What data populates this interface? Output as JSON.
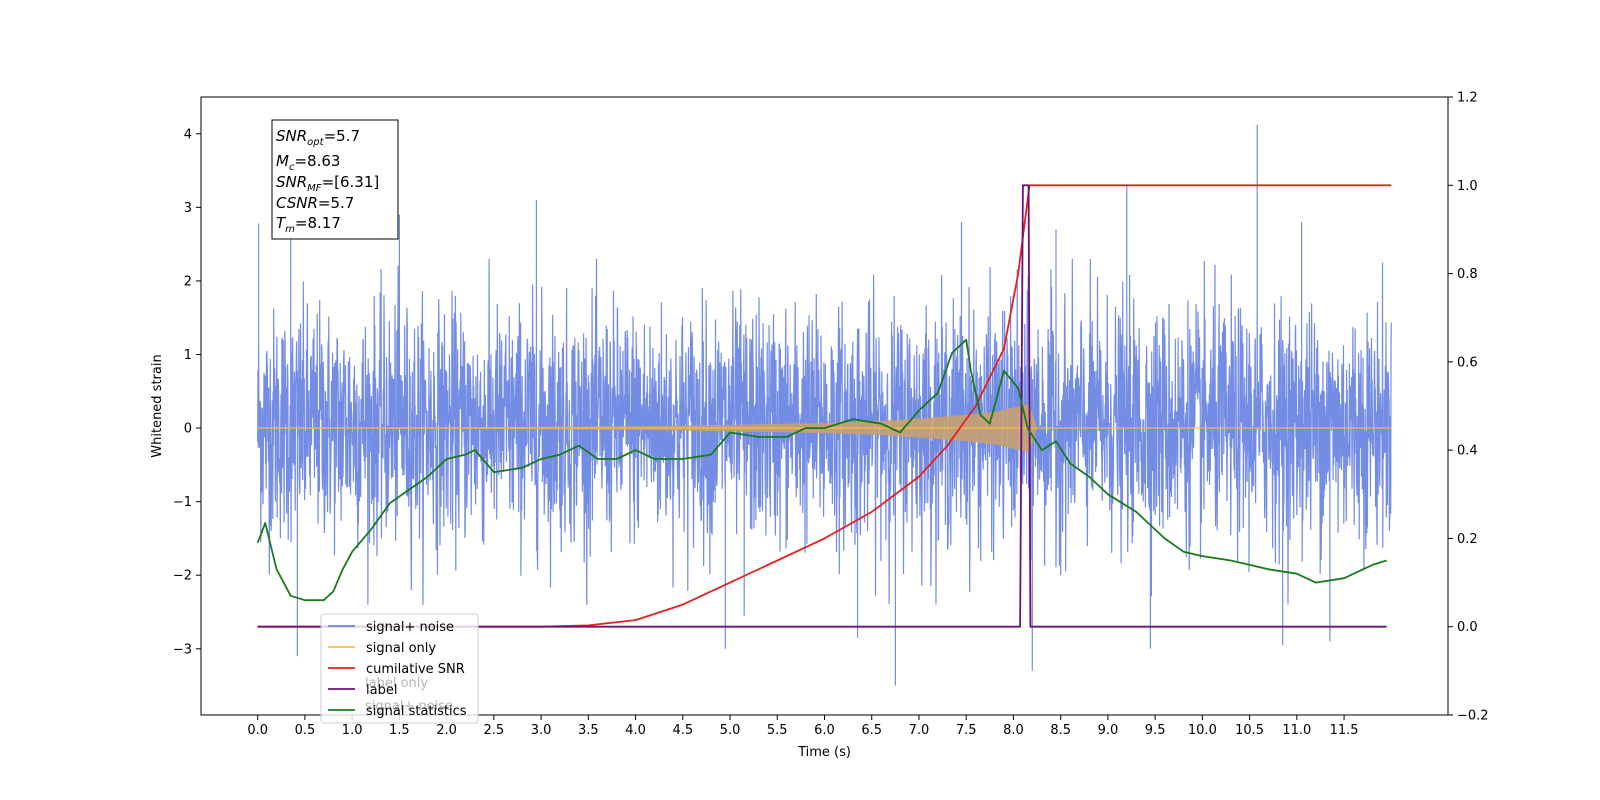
{
  "chart_data": {
    "type": "line",
    "xlabel": "Time (s)",
    "ylabel": "Whitened strain",
    "xlim": [
      -0.6,
      12.6
    ],
    "ylim": [
      -3.9,
      4.5
    ],
    "y2lim": [
      -0.2,
      1.2
    ],
    "x_ticks": [
      0.0,
      0.5,
      1.0,
      1.5,
      2.0,
      2.5,
      3.0,
      3.5,
      4.0,
      4.5,
      5.0,
      5.5,
      6.0,
      6.5,
      7.0,
      7.5,
      8.0,
      8.5,
      9.0,
      9.5,
      10.0,
      10.5,
      11.0,
      11.5
    ],
    "x_tick_labels": [
      "0.0",
      "0.5",
      "1.0",
      "1.5",
      "2.0",
      "2.5",
      "3.0",
      "3.5",
      "4.0",
      "4.5",
      "5.0",
      "5.5",
      "6.0",
      "6.5",
      "7.0",
      "7.5",
      "8.0",
      "8.5",
      "9.0",
      "9.5",
      "10.0",
      "10.5",
      "11.0",
      "11.5"
    ],
    "y_ticks": [
      -3,
      -2,
      -1,
      0,
      1,
      2,
      3,
      4
    ],
    "y_tick_labels": [
      "−3",
      "−2",
      "−1",
      "0",
      "1",
      "2",
      "3",
      "4"
    ],
    "y2_ticks": [
      -0.2,
      0.0,
      0.2,
      0.4,
      0.6,
      0.8,
      1.0,
      1.2
    ],
    "y2_tick_labels": [
      "−0.2",
      "0.0",
      "0.2",
      "0.4",
      "0.6",
      "0.8",
      "1.0",
      "1.2"
    ],
    "legend_position": "lower-left",
    "series": [
      {
        "name": "signal+ noise",
        "axis": "left",
        "color": "#6b86e3",
        "noise_envelope": {
          "x_range": [
            0.0,
            12.0
          ],
          "typical_min": -1.8,
          "typical_max": 1.9
        },
        "spikes": [
          [
            0.01,
            2.78
          ],
          [
            0.35,
            2.65
          ],
          [
            1.5,
            2.9
          ],
          [
            2.95,
            3.1
          ],
          [
            7.45,
            2.8
          ],
          [
            8.45,
            2.7
          ],
          [
            9.2,
            3.3
          ],
          [
            10.58,
            4.12
          ],
          [
            11.05,
            2.8
          ],
          [
            0.42,
            -3.1
          ],
          [
            4.95,
            -3.0
          ],
          [
            5.15,
            -2.55
          ],
          [
            6.35,
            -2.85
          ],
          [
            6.75,
            -3.5
          ],
          [
            8.2,
            -3.3
          ],
          [
            9.45,
            -3.0
          ],
          [
            10.85,
            -2.95
          ],
          [
            11.35,
            -2.9
          ]
        ]
      },
      {
        "name": "signal only",
        "axis": "left",
        "color": "#ffc040",
        "fill_color": "#c8a070",
        "amplitude": {
          "x": [
            0.0,
            2.0,
            4.0,
            5.0,
            6.0,
            6.5,
            7.0,
            7.5,
            7.8,
            8.0,
            8.17,
            8.25,
            12.0
          ],
          "y": [
            0.005,
            0.01,
            0.025,
            0.045,
            0.07,
            0.09,
            0.13,
            0.18,
            0.22,
            0.28,
            0.33,
            0.0,
            0.0
          ]
        }
      },
      {
        "name": "cumilative SNR",
        "axis": "right",
        "color": "#e8201c",
        "x": [
          0.0,
          3.0,
          3.5,
          4.0,
          4.5,
          5.0,
          5.5,
          6.0,
          6.5,
          7.0,
          7.3,
          7.6,
          7.9,
          8.05,
          8.17,
          8.2,
          12.0
        ],
        "y": [
          0.0,
          0.0,
          0.003,
          0.015,
          0.05,
          0.1,
          0.15,
          0.2,
          0.26,
          0.34,
          0.41,
          0.5,
          0.63,
          0.8,
          1.0,
          1.0,
          1.0
        ]
      },
      {
        "name": "label",
        "axis": "right",
        "color": "#6a0f7c",
        "x": [
          0.0,
          8.07,
          8.1,
          8.16,
          8.18,
          11.95
        ],
        "y": [
          0.0,
          0.0,
          1.0,
          1.0,
          0.0,
          0.0
        ]
      },
      {
        "name": "signal statistics",
        "axis": "right",
        "color": "#1a7a1a",
        "x": [
          0.0,
          0.08,
          0.2,
          0.35,
          0.5,
          0.7,
          0.8,
          0.9,
          1.0,
          1.2,
          1.4,
          1.6,
          1.8,
          2.0,
          2.2,
          2.3,
          2.5,
          2.8,
          3.0,
          3.2,
          3.4,
          3.6,
          3.8,
          4.0,
          4.2,
          4.5,
          4.8,
          5.0,
          5.3,
          5.6,
          5.8,
          6.0,
          6.3,
          6.6,
          6.8,
          7.0,
          7.2,
          7.35,
          7.5,
          7.55,
          7.65,
          7.75,
          7.9,
          8.05,
          8.15,
          8.3,
          8.45,
          8.6,
          8.8,
          9.0,
          9.3,
          9.6,
          9.8,
          10.0,
          10.3,
          10.5,
          10.7,
          11.0,
          11.2,
          11.5,
          11.8,
          11.95
        ],
        "y": [
          0.19,
          0.235,
          0.13,
          0.07,
          0.06,
          0.06,
          0.08,
          0.13,
          0.17,
          0.22,
          0.28,
          0.31,
          0.34,
          0.38,
          0.39,
          0.4,
          0.35,
          0.36,
          0.38,
          0.39,
          0.41,
          0.38,
          0.38,
          0.4,
          0.38,
          0.38,
          0.39,
          0.44,
          0.43,
          0.43,
          0.45,
          0.45,
          0.47,
          0.46,
          0.44,
          0.49,
          0.53,
          0.62,
          0.65,
          0.58,
          0.48,
          0.46,
          0.58,
          0.54,
          0.45,
          0.4,
          0.42,
          0.37,
          0.34,
          0.3,
          0.26,
          0.2,
          0.17,
          0.16,
          0.15,
          0.14,
          0.13,
          0.12,
          0.1,
          0.11,
          0.14,
          0.15
        ]
      }
    ]
  },
  "info_box": {
    "snr_opt": {
      "base": "SNR",
      "sub": "opt",
      "value": "=5.7"
    },
    "mc": {
      "base": "M",
      "sub": "c",
      "value": "=8.63"
    },
    "snr_mf": {
      "base": "SNR",
      "sub": "MF",
      "value": "=[6.31]"
    },
    "csnr": {
      "base": "CSNR",
      "sub": "",
      "value": "=5.7"
    },
    "tm": {
      "base": "T",
      "sub": "m",
      "value": "=8.17"
    }
  },
  "legend": {
    "items": [
      {
        "label": "signal+ noise",
        "color": "#6b86e3"
      },
      {
        "label": "signal only",
        "color": "#ffc040"
      },
      {
        "label": "cumilative SNR",
        "color": "#e8201c"
      },
      {
        "label": "label",
        "color": "#6a0f7c"
      },
      {
        "label": "signal statistics",
        "color": "#1a7a1a"
      }
    ]
  },
  "overlay": {
    "hidden_legend_line_1": "label only",
    "hidden_legend_line_2": "signal+ noise"
  }
}
